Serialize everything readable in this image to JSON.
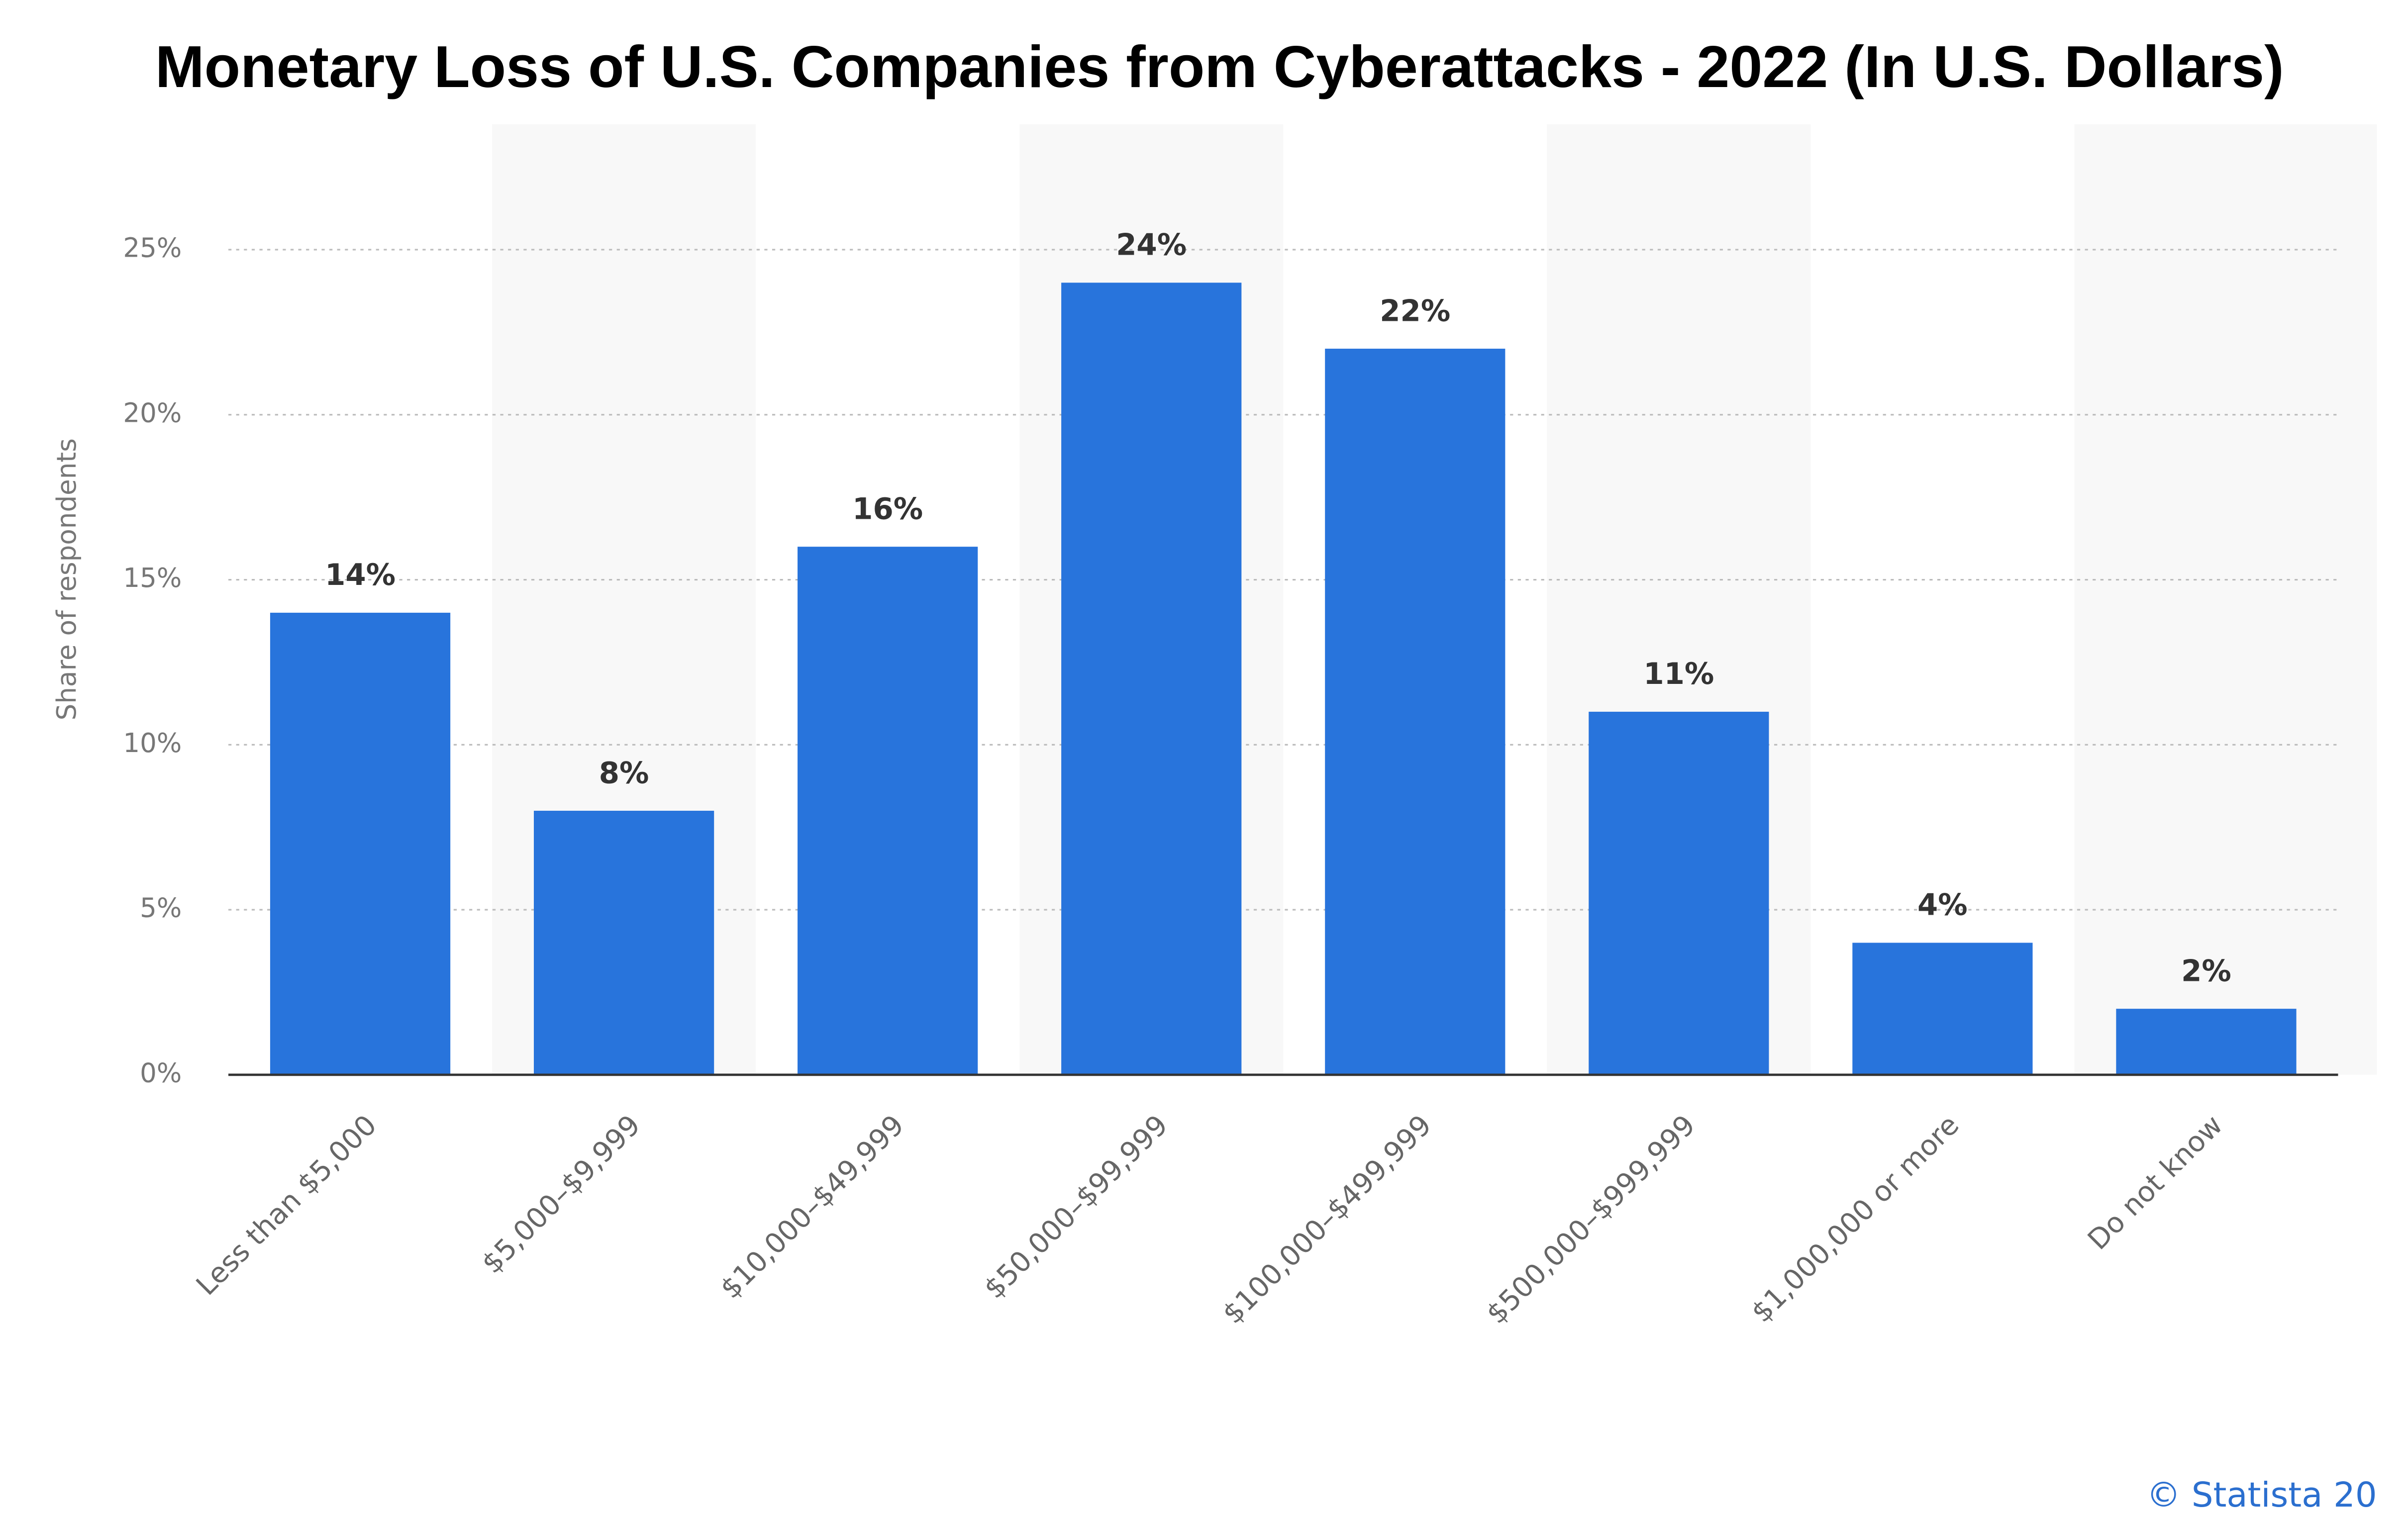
{
  "chart_data": {
    "type": "bar",
    "title": "Monetary Loss of U.S. Companies from Cyberattacks - 2022 (In U.S. Dollars)",
    "y_label": "Share of respondents",
    "credit": "© Statista 20",
    "categories": [
      "Less than $5,000",
      "$5,000–$9,999",
      "$10,000–$49,999",
      "$50,000–$99,999",
      "$100,000–$499,999",
      "$500,000–$999,999",
      "$1,000,000 or more",
      "Do not know"
    ],
    "values": [
      14,
      8,
      16,
      24,
      22,
      11,
      4,
      2
    ],
    "value_labels": [
      "14%",
      "8%",
      "16%",
      "24%",
      "22%",
      "11%",
      "4%",
      "2%"
    ],
    "color": "#2874dc",
    "ylim": [
      0,
      28.8
    ],
    "yticks": [
      {
        "value": 0,
        "label": "0%"
      },
      {
        "value": 5,
        "label": "5%"
      },
      {
        "value": 10,
        "label": "10%"
      },
      {
        "value": 15,
        "label": "15%"
      },
      {
        "value": 20,
        "label": "20%"
      },
      {
        "value": 25,
        "label": "25%"
      }
    ],
    "grid": true
  }
}
